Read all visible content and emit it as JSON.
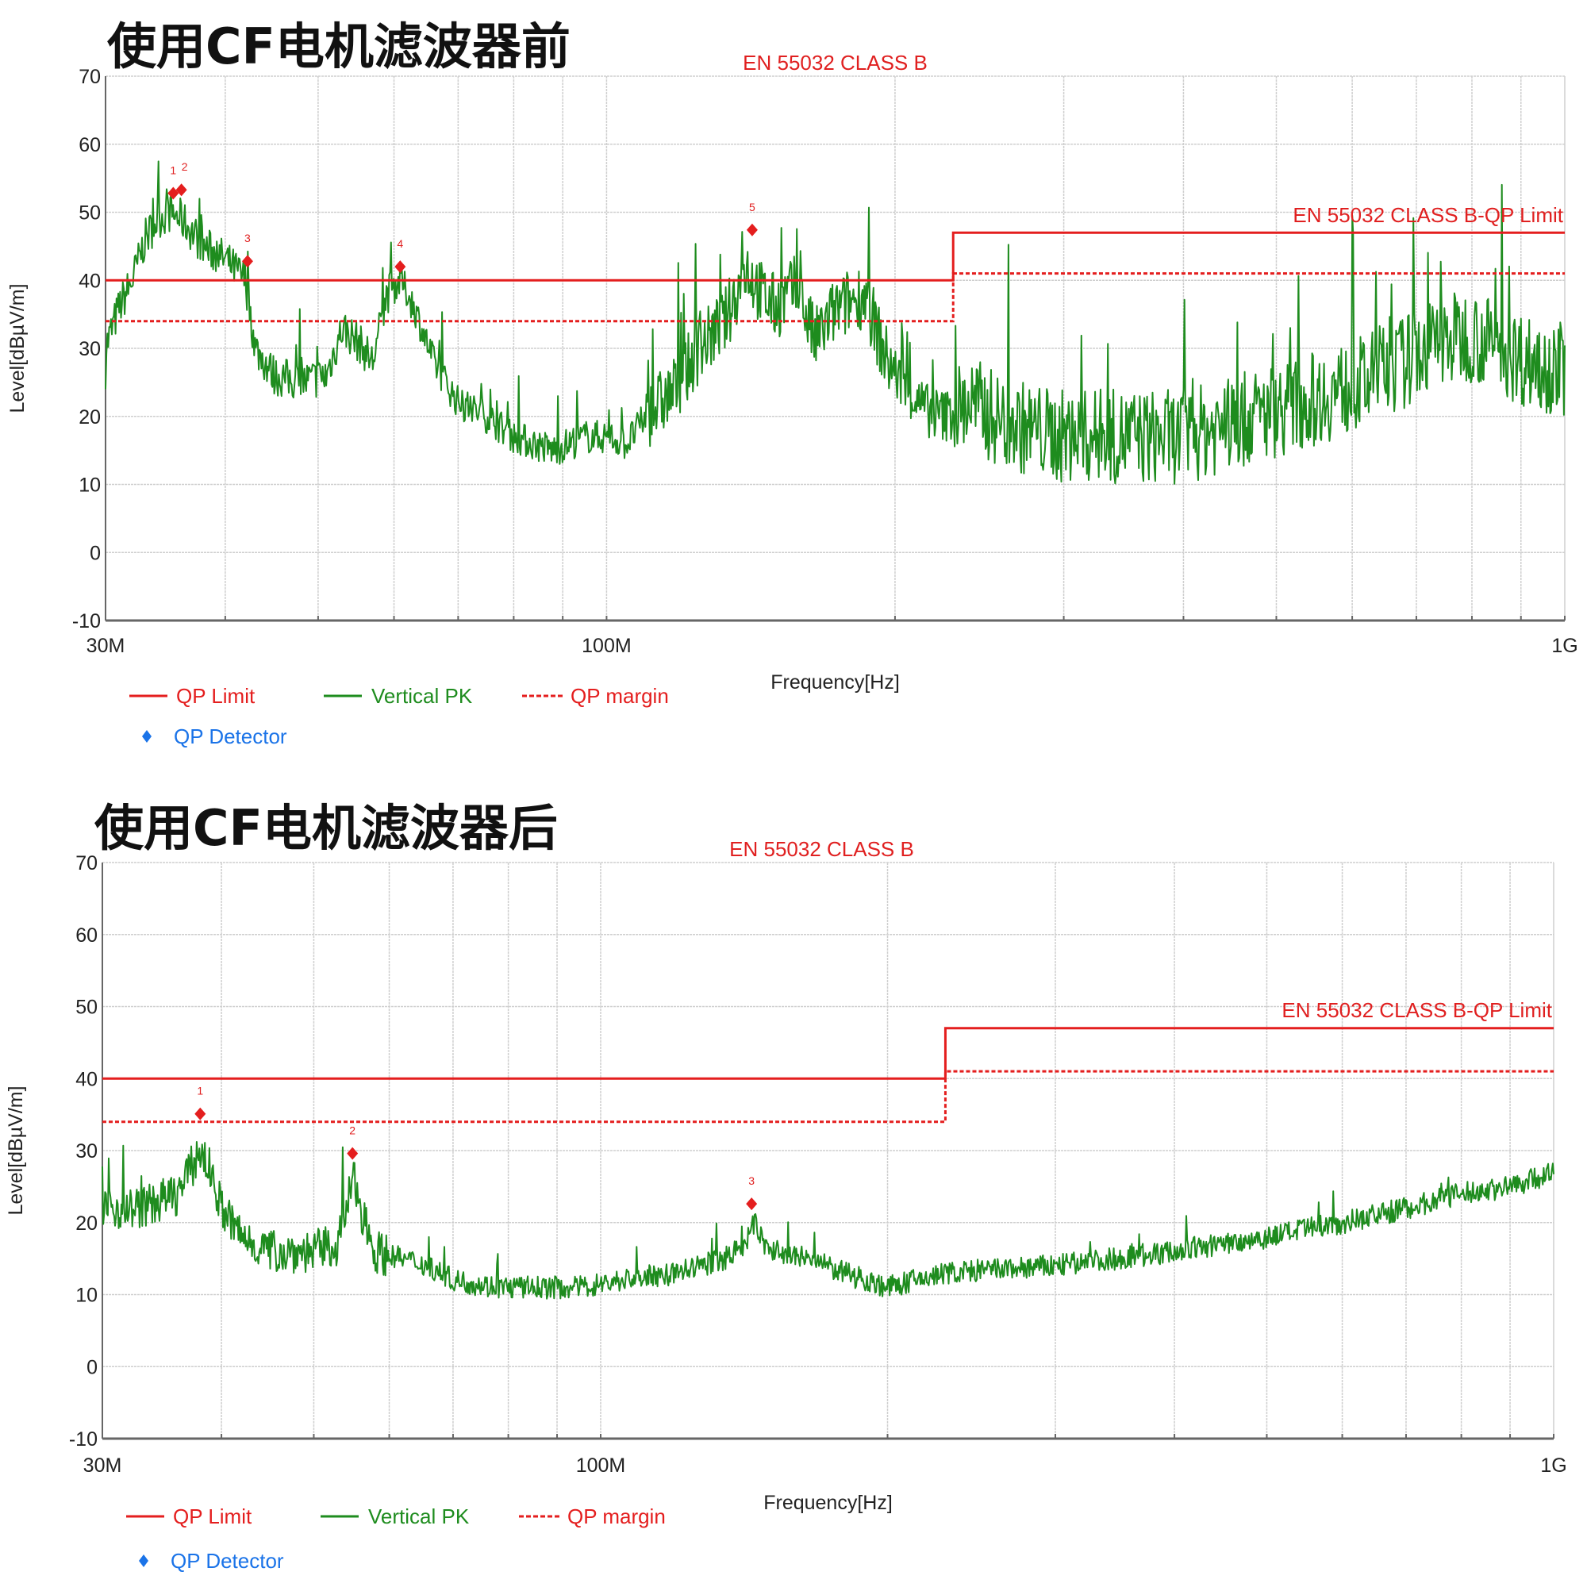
{
  "colors": {
    "limit": "#e41e1e",
    "trace": "#1e8c1e",
    "detector": "#1a73e8",
    "grid": "#cfcfcf"
  },
  "chart_data": [
    {
      "type": "line",
      "title": "使用CF电机滤波器前",
      "standard_label": "EN 55032 CLASS B",
      "limit_label": "EN 55032 CLASS B-QP Limit",
      "xlabel": "Frequency[Hz]",
      "ylabel": "Level[dBµV/m]",
      "x_scale": "log",
      "xlim_mhz": [
        30,
        1000
      ],
      "ylim": [
        -10,
        70
      ],
      "x_ticks": [
        {
          "mhz": 30,
          "label": "30M"
        },
        {
          "mhz": 100,
          "label": "100M"
        },
        {
          "mhz": 1000,
          "label": "1G"
        }
      ],
      "y_ticks": [
        "-10",
        "0",
        "10",
        "20",
        "30",
        "40",
        "50",
        "60",
        "70"
      ],
      "grid": true,
      "legend": {
        "placement": "bottom-left",
        "items": [
          "QP Limit",
          "Vertical PK",
          "QP margin",
          "QP Detector"
        ]
      },
      "qp_limit": [
        {
          "from_mhz": 30,
          "to_mhz": 230,
          "level": 40
        },
        {
          "from_mhz": 230,
          "to_mhz": 1000,
          "level": 47
        }
      ],
      "qp_margin": [
        {
          "from_mhz": 30,
          "to_mhz": 230,
          "level": 34
        },
        {
          "from_mhz": 230,
          "to_mhz": 1000,
          "level": 41
        }
      ],
      "vertical_pk": [
        [
          30,
          30
        ],
        [
          31,
          36
        ],
        [
          32,
          40
        ],
        [
          33,
          46
        ],
        [
          34,
          49
        ],
        [
          35,
          50
        ],
        [
          36,
          49
        ],
        [
          38,
          45
        ],
        [
          40,
          43
        ],
        [
          42,
          40
        ],
        [
          43,
          30
        ],
        [
          45,
          26
        ],
        [
          48,
          25
        ],
        [
          51,
          26
        ],
        [
          53,
          33
        ],
        [
          55,
          31
        ],
        [
          57,
          28
        ],
        [
          59,
          38
        ],
        [
          61,
          40
        ],
        [
          63,
          36
        ],
        [
          66,
          28
        ],
        [
          70,
          22
        ],
        [
          75,
          20
        ],
        [
          80,
          17
        ],
        [
          88,
          15
        ],
        [
          95,
          17
        ],
        [
          100,
          17
        ],
        [
          105,
          16
        ],
        [
          110,
          20
        ],
        [
          118,
          24
        ],
        [
          125,
          30
        ],
        [
          133,
          34
        ],
        [
          140,
          42
        ],
        [
          145,
          38
        ],
        [
          150,
          36
        ],
        [
          158,
          39
        ],
        [
          165,
          31
        ],
        [
          172,
          35
        ],
        [
          180,
          37
        ],
        [
          186,
          38
        ],
        [
          195,
          29
        ],
        [
          205,
          24
        ],
        [
          215,
          21
        ],
        [
          225,
          20
        ],
        [
          240,
          22
        ],
        [
          260,
          19
        ],
        [
          300,
          17
        ],
        [
          350,
          17
        ],
        [
          400,
          17
        ],
        [
          450,
          19
        ],
        [
          500,
          21
        ],
        [
          560,
          23
        ],
        [
          620,
          25
        ],
        [
          680,
          28
        ],
        [
          740,
          31
        ],
        [
          800,
          32
        ],
        [
          850,
          30
        ],
        [
          920,
          28
        ],
        [
          1000,
          27
        ]
      ],
      "qp_detector": [
        {
          "label": "1",
          "mhz": 35.3,
          "level": 52.8
        },
        {
          "label": "2",
          "mhz": 36.0,
          "level": 53.3
        },
        {
          "label": "3",
          "mhz": 42.2,
          "level": 42.8
        },
        {
          "label": "4",
          "mhz": 60.9,
          "level": 42.0
        },
        {
          "label": "5",
          "mhz": 141.9,
          "level": 47.4
        }
      ]
    },
    {
      "type": "line",
      "title": "使用CF电机滤波器后",
      "standard_label": "EN 55032 CLASS B",
      "limit_label": "EN 55032 CLASS B-QP Limit",
      "xlabel": "Frequency[Hz]",
      "ylabel": "Level[dBµV/m]",
      "x_scale": "log",
      "xlim_mhz": [
        30,
        1000
      ],
      "ylim": [
        -10,
        70
      ],
      "x_ticks": [
        {
          "mhz": 30,
          "label": "30M"
        },
        {
          "mhz": 100,
          "label": "100M"
        },
        {
          "mhz": 1000,
          "label": "1G"
        }
      ],
      "y_ticks": [
        "-10",
        "0",
        "10",
        "20",
        "30",
        "40",
        "50",
        "60",
        "70"
      ],
      "grid": true,
      "legend": {
        "placement": "bottom-left",
        "items": [
          "QP Limit",
          "Vertical PK",
          "QP margin",
          "QP Detector"
        ]
      },
      "qp_limit": [
        {
          "from_mhz": 30,
          "to_mhz": 230,
          "level": 40
        },
        {
          "from_mhz": 230,
          "to_mhz": 1000,
          "level": 47
        }
      ],
      "qp_margin": [
        {
          "from_mhz": 30,
          "to_mhz": 230,
          "level": 34
        },
        {
          "from_mhz": 230,
          "to_mhz": 1000,
          "level": 41
        }
      ],
      "vertical_pk": [
        [
          30,
          22
        ],
        [
          33,
          22
        ],
        [
          36,
          24
        ],
        [
          38,
          30
        ],
        [
          39,
          27
        ],
        [
          40,
          22
        ],
        [
          42,
          18
        ],
        [
          45,
          16
        ],
        [
          50,
          16
        ],
        [
          53,
          17
        ],
        [
          55,
          26
        ],
        [
          56,
          22
        ],
        [
          58,
          16
        ],
        [
          62,
          15
        ],
        [
          66,
          14
        ],
        [
          70,
          12
        ],
        [
          78,
          11
        ],
        [
          85,
          11
        ],
        [
          95,
          11
        ],
        [
          105,
          12
        ],
        [
          120,
          13
        ],
        [
          135,
          15
        ],
        [
          142,
          17
        ],
        [
          145,
          20
        ],
        [
          150,
          16
        ],
        [
          165,
          15
        ],
        [
          180,
          13
        ],
        [
          200,
          11
        ],
        [
          230,
          13
        ],
        [
          300,
          14
        ],
        [
          400,
          16
        ],
        [
          500,
          18
        ],
        [
          600,
          20
        ],
        [
          700,
          22
        ],
        [
          800,
          24
        ],
        [
          900,
          25
        ],
        [
          1000,
          27
        ]
      ],
      "qp_detector": [
        {
          "label": "1",
          "mhz": 38.0,
          "level": 35.1
        },
        {
          "label": "2",
          "mhz": 54.9,
          "level": 29.6
        },
        {
          "label": "3",
          "mhz": 144.0,
          "level": 22.6
        }
      ]
    }
  ]
}
